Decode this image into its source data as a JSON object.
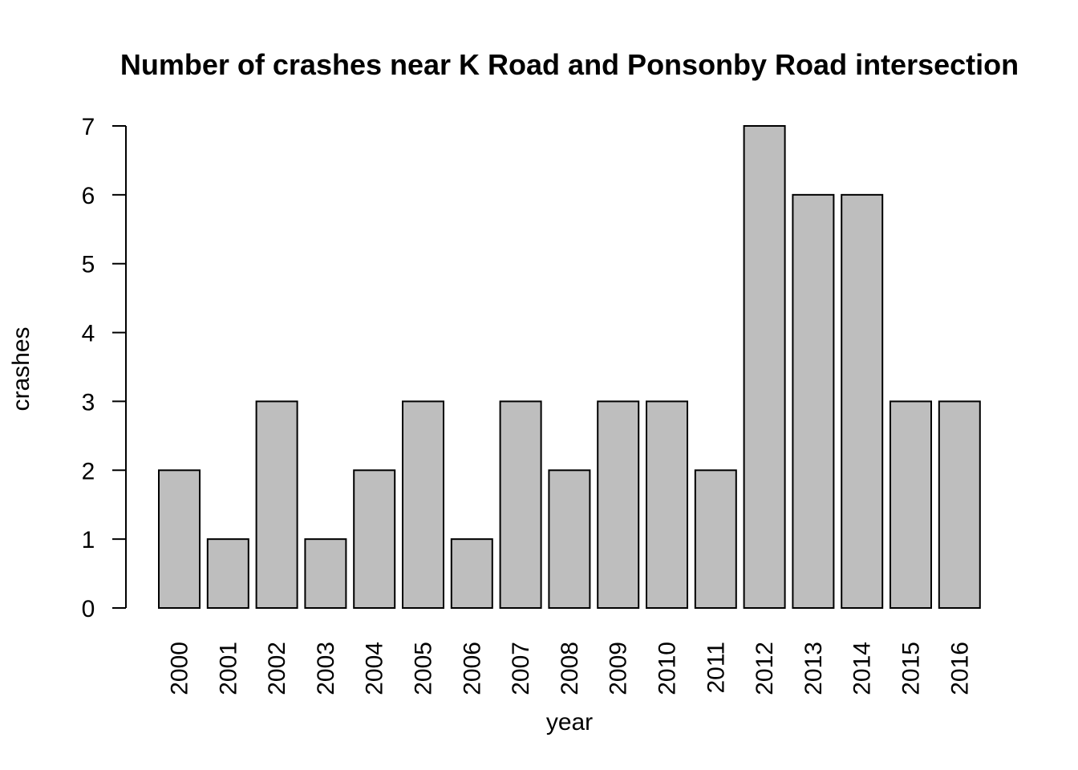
{
  "chart_data": {
    "type": "bar",
    "title": "Number of crashes near K Road and Ponsonby Road intersection",
    "xlabel": "year",
    "ylabel": "crashes",
    "categories": [
      "2000",
      "2001",
      "2002",
      "2003",
      "2004",
      "2005",
      "2006",
      "2007",
      "2008",
      "2009",
      "2010",
      "2011",
      "2012",
      "2013",
      "2014",
      "2015",
      "2016"
    ],
    "values": [
      2,
      1,
      3,
      1,
      2,
      3,
      1,
      3,
      2,
      3,
      3,
      2,
      7,
      6,
      6,
      3,
      3
    ],
    "ylim": [
      0,
      7
    ],
    "yticks": [
      "0",
      "1",
      "2",
      "3",
      "4",
      "5",
      "6",
      "7"
    ],
    "grid": false,
    "colors": {
      "bar_fill": "#bebebe",
      "bar_stroke": "#000000"
    }
  }
}
